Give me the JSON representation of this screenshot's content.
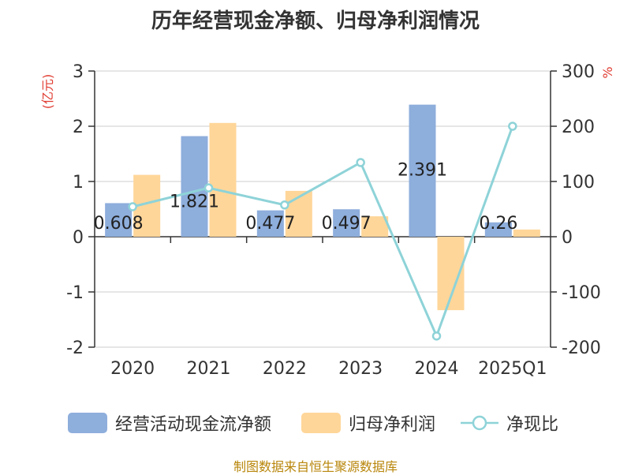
{
  "chart_data": {
    "type": "bar",
    "title": "历年经营现金净额、归母净利润情况",
    "categories": [
      "2020",
      "2021",
      "2022",
      "2023",
      "2024",
      "2025Q1"
    ],
    "series": [
      {
        "name": "经营活动现金流净额",
        "type": "bar",
        "axis": "left",
        "values": [
          0.608,
          1.821,
          0.477,
          0.497,
          2.391,
          0.26
        ],
        "labels": [
          "0.608",
          "1.821",
          "0.477",
          "0.497",
          "2.391",
          "0.26"
        ],
        "color": "#8eaedc"
      },
      {
        "name": "归母净利润",
        "type": "bar",
        "axis": "left",
        "values": [
          1.12,
          2.06,
          0.83,
          0.37,
          -1.33,
          0.13
        ],
        "color": "#ffd699"
      },
      {
        "name": "净现比",
        "type": "line",
        "axis": "right",
        "values": [
          54.3,
          88.4,
          57.5,
          134.3,
          -179.8,
          200.0
        ],
        "color": "#8ed3d8"
      }
    ],
    "left_axis": {
      "label": "(亿元)",
      "min": -2,
      "max": 3,
      "ticks": [
        "-2",
        "-1",
        "0",
        "1",
        "2",
        "3"
      ]
    },
    "right_axis": {
      "label": "%",
      "min": -200,
      "max": 300,
      "ticks": [
        "-200",
        "-100",
        "0",
        "100",
        "200",
        "300"
      ]
    },
    "grid": true,
    "legend_position": "bottom"
  },
  "source": "制图数据来自恒生聚源数据库",
  "colors": {
    "axis_label": "#e03c31",
    "text": "#333333",
    "grid": "#cccccc",
    "source": "#b8860b"
  }
}
